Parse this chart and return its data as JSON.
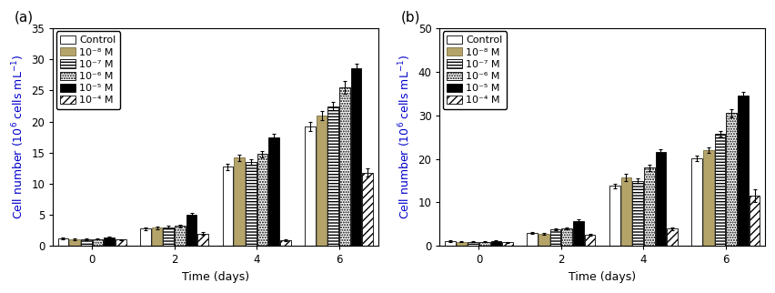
{
  "panel_a": {
    "title": "(a)",
    "ylabel": "Cell number (10⁶ cells mL⁻¹)",
    "xlabel": "Time (days)",
    "ylim": [
      0,
      35
    ],
    "yticks": [
      0,
      5,
      10,
      15,
      20,
      25,
      30,
      35
    ],
    "days": [
      0,
      2,
      4,
      6
    ],
    "series": {
      "Control": {
        "values": [
          1.2,
          2.8,
          12.7,
          19.2
        ],
        "errors": [
          0.15,
          0.2,
          0.5,
          0.7
        ]
      },
      "1e-8 M": {
        "values": [
          1.1,
          2.9,
          14.2,
          21.0
        ],
        "errors": [
          0.12,
          0.2,
          0.5,
          0.7
        ]
      },
      "1e-7 M": {
        "values": [
          1.1,
          3.0,
          13.5,
          22.5
        ],
        "errors": [
          0.12,
          0.2,
          0.4,
          0.6
        ]
      },
      "1e-6 M": {
        "values": [
          1.1,
          3.2,
          14.8,
          25.5
        ],
        "errors": [
          0.1,
          0.25,
          0.5,
          1.0
        ]
      },
      "1e-5 M": {
        "values": [
          1.3,
          5.0,
          17.5,
          28.5
        ],
        "errors": [
          0.2,
          0.3,
          0.5,
          0.8
        ]
      },
      "1e-4 M": {
        "values": [
          1.0,
          2.0,
          0.9,
          11.8
        ],
        "errors": [
          0.1,
          0.2,
          0.1,
          0.7
        ]
      }
    }
  },
  "panel_b": {
    "title": "(b)",
    "ylabel": "Cell number (10⁶ cells mL⁻¹)",
    "xlabel": "Time (days)",
    "ylim": [
      0,
      50
    ],
    "yticks": [
      0,
      10,
      20,
      30,
      40,
      50
    ],
    "days": [
      0,
      2,
      4,
      6
    ],
    "series": {
      "Control": {
        "values": [
          1.1,
          3.0,
          13.8,
          20.2
        ],
        "errors": [
          0.15,
          0.2,
          0.5,
          0.6
        ]
      },
      "1e-8 M": {
        "values": [
          1.0,
          2.8,
          15.8,
          22.0
        ],
        "errors": [
          0.12,
          0.2,
          0.8,
          0.6
        ]
      },
      "1e-7 M": {
        "values": [
          1.0,
          3.8,
          15.0,
          25.8
        ],
        "errors": [
          0.1,
          0.25,
          0.6,
          0.7
        ]
      },
      "1e-6 M": {
        "values": [
          1.0,
          4.0,
          18.0,
          30.5
        ],
        "errors": [
          0.1,
          0.25,
          0.7,
          0.9
        ]
      },
      "1e-5 M": {
        "values": [
          1.2,
          5.8,
          21.5,
          34.5
        ],
        "errors": [
          0.2,
          0.3,
          0.8,
          0.9
        ]
      },
      "1e-4 M": {
        "values": [
          0.8,
          2.5,
          4.0,
          11.5
        ],
        "errors": [
          0.1,
          0.2,
          0.3,
          1.5
        ]
      }
    }
  },
  "legend_labels": [
    "Control",
    "10⁻⁸ M",
    "10⁻⁷ M",
    "10⁻⁶ M",
    "10⁻⁵ M",
    "10⁻⁴ M"
  ],
  "bar_colors": [
    "white",
    "#b5a46a",
    "white",
    "white",
    "black",
    "white"
  ],
  "bar_edgecolors": [
    "black",
    "#7a6e40",
    "black",
    "black",
    "black",
    "black"
  ],
  "hatches": [
    "",
    "",
    "-----",
    "......",
    "",
    "////"
  ],
  "bar_width": 0.28,
  "label_fontsize": 9,
  "tick_fontsize": 8.5,
  "legend_fontsize": 8,
  "ylabel_color": "#0000cc"
}
